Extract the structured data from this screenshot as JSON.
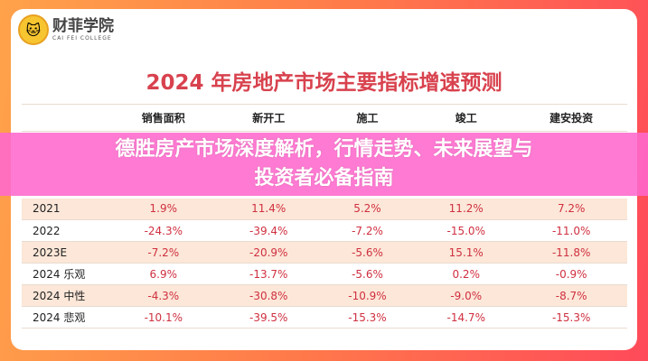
{
  "logo": {
    "name_cn": "财菲学院",
    "name_en": "CAI FEI COLLEGE"
  },
  "title": "2024 年房地产市场主要指标增速预测",
  "table": {
    "headers": [
      "",
      "销售面积",
      "新开工",
      "施工",
      "竣工",
      "建安投资"
    ],
    "rows": [
      {
        "label": "2021",
        "values": [
          "1.9%",
          "11.4%",
          "5.2%",
          "11.2%",
          "7.2%"
        ]
      },
      {
        "label": "2022",
        "values": [
          "-24.3%",
          "-39.4%",
          "-7.2%",
          "-15.0%",
          "-11.0%"
        ]
      },
      {
        "label": "2023E",
        "values": [
          "-7.2%",
          "-20.9%",
          "-5.6%",
          "15.1%",
          "-11.8%"
        ]
      },
      {
        "label": "2024 乐观",
        "values": [
          "6.9%",
          "-13.7%",
          "-5.6%",
          "0.2%",
          "-0.9%"
        ]
      },
      {
        "label": "2024 中性",
        "values": [
          "-4.3%",
          "-30.8%",
          "-10.9%",
          "-9.0%",
          "-8.7%"
        ]
      },
      {
        "label": "2024 悲观",
        "values": [
          "-10.1%",
          "-39.5%",
          "-15.3%",
          "-14.7%",
          "-15.3%"
        ]
      }
    ]
  },
  "overlay": {
    "line1": "德胜房产市场深度解析，行情走势、未来展望与",
    "line2": "投资者必备指南"
  },
  "colors": {
    "title": "#d8424e",
    "value": "#d03040",
    "band": "#ff69cd",
    "alt_row": "#fce7d8"
  }
}
